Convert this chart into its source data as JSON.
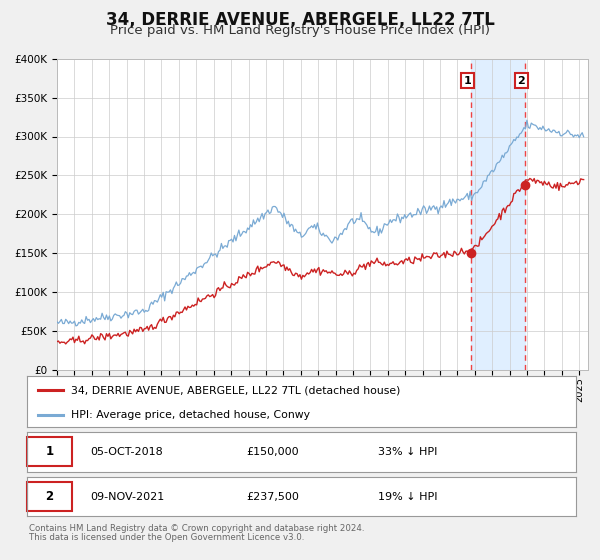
{
  "title": "34, DERRIE AVENUE, ABERGELE, LL22 7TL",
  "subtitle": "Price paid vs. HM Land Registry's House Price Index (HPI)",
  "ylim": [
    0,
    400000
  ],
  "yticks": [
    0,
    50000,
    100000,
    150000,
    200000,
    250000,
    300000,
    350000,
    400000
  ],
  "ytick_labels": [
    "£0",
    "£50K",
    "£100K",
    "£150K",
    "£200K",
    "£250K",
    "£300K",
    "£350K",
    "£400K"
  ],
  "xlim_start": 1995.0,
  "xlim_end": 2025.5,
  "hpi_color": "#7aaad4",
  "price_color": "#cc2222",
  "marker_color": "#cc2222",
  "vline_color": "#ee4444",
  "shade_color": "#ddeeff",
  "title_fontsize": 12,
  "subtitle_fontsize": 9.5,
  "legend_label_price": "34, DERRIE AVENUE, ABERGELE, LL22 7TL (detached house)",
  "legend_label_hpi": "HPI: Average price, detached house, Conwy",
  "sale1_date": 2018.76,
  "sale1_price": 150000,
  "sale1_label": "1",
  "sale1_text": "05-OCT-2018",
  "sale1_amount": "£150,000",
  "sale1_pct": "33% ↓ HPI",
  "sale2_date": 2021.86,
  "sale2_price": 237500,
  "sale2_label": "2",
  "sale2_text": "09-NOV-2021",
  "sale2_amount": "£237,500",
  "sale2_pct": "19% ↓ HPI",
  "footer_line1": "Contains HM Land Registry data © Crown copyright and database right 2024.",
  "footer_line2": "This data is licensed under the Open Government Licence v3.0.",
  "background_color": "#f0f0f0",
  "plot_bg_color": "#ffffff"
}
